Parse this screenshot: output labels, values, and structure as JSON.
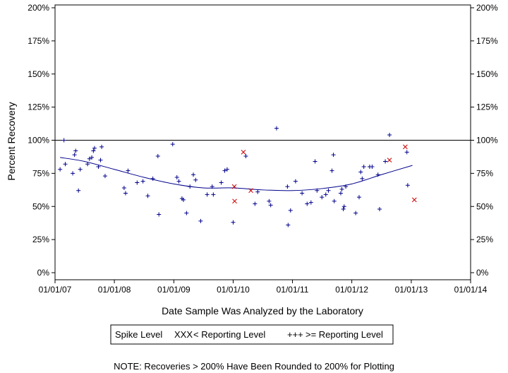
{
  "chart_data": {
    "type": "scatter",
    "xlabel": "Date Sample Was Analyzed by the Laboratory",
    "ylabel": "Percent Recovery",
    "ylim": [
      0,
      200
    ],
    "xlim": [
      "2007-01-01",
      "2014-01-01"
    ],
    "y_ticks": [
      0,
      25,
      50,
      75,
      100,
      125,
      150,
      175,
      200
    ],
    "y_tick_labels": [
      "0%",
      "25%",
      "50%",
      "75%",
      "100%",
      "125%",
      "150%",
      "175%",
      "200%"
    ],
    "x_ticks": [
      "2007-01-01",
      "2008-01-01",
      "2009-01-01",
      "2010-01-01",
      "2011-01-01",
      "2012-01-01",
      "2013-01-01",
      "2014-01-01"
    ],
    "x_tick_labels": [
      "01/01/07",
      "01/01/08",
      "01/01/09",
      "01/01/10",
      "01/01/11",
      "01/01/12",
      "01/01/13",
      "01/01/14"
    ],
    "reference_line": 100,
    "grid": false,
    "legend": {
      "title": "Spike Level",
      "placement": "bottom",
      "entries": [
        {
          "symbol": "XXX",
          "label": "< Reporting Level",
          "color": "#cc0000"
        },
        {
          "symbol": "+++",
          "label": ">= Reporting Level",
          "color": "#00008b"
        }
      ]
    },
    "note": "NOTE: Recoveries > 200% Have Been Rounded to 200% for Plotting",
    "colors": {
      "below": "#cc0000",
      "above": "#00008b",
      "trend": "#00008b"
    },
    "series": [
      {
        "name": "< Reporting Level",
        "marker": "x",
        "points": [
          [
            "2010-01-08",
            65
          ],
          [
            "2010-01-10",
            54
          ],
          [
            "2010-03-05",
            91
          ],
          [
            "2010-04-20",
            62
          ],
          [
            "2012-08-20",
            85
          ],
          [
            "2012-11-25",
            95
          ],
          [
            "2013-01-20",
            55
          ]
        ]
      },
      {
        "name": ">= Reporting Level",
        "marker": "+",
        "points": [
          [
            "2007-02-01",
            78
          ],
          [
            "2007-02-25",
            100
          ],
          [
            "2007-03-05",
            82
          ],
          [
            "2007-04-20",
            75
          ],
          [
            "2007-05-01",
            89
          ],
          [
            "2007-05-08",
            92
          ],
          [
            "2007-05-25",
            62
          ],
          [
            "2007-06-05",
            78
          ],
          [
            "2007-07-20",
            82
          ],
          [
            "2007-08-01",
            86
          ],
          [
            "2007-08-15",
            87
          ],
          [
            "2007-08-25",
            92
          ],
          [
            "2007-09-01",
            94
          ],
          [
            "2007-09-25",
            80
          ],
          [
            "2007-10-08",
            85
          ],
          [
            "2007-10-15",
            95
          ],
          [
            "2007-11-05",
            73
          ],
          [
            "2008-03-01",
            64
          ],
          [
            "2008-03-10",
            60
          ],
          [
            "2008-03-25",
            77
          ],
          [
            "2008-05-20",
            68
          ],
          [
            "2008-06-25",
            69
          ],
          [
            "2008-07-25",
            58
          ],
          [
            "2008-08-25",
            71
          ],
          [
            "2008-09-25",
            88
          ],
          [
            "2008-10-01",
            44
          ],
          [
            "2008-12-25",
            97
          ],
          [
            "2009-01-20",
            72
          ],
          [
            "2009-02-01",
            69
          ],
          [
            "2009-02-20",
            56
          ],
          [
            "2009-03-01",
            55
          ],
          [
            "2009-03-20",
            45
          ],
          [
            "2009-04-10",
            65
          ],
          [
            "2009-05-01",
            74
          ],
          [
            "2009-05-15",
            70
          ],
          [
            "2009-06-15",
            39
          ],
          [
            "2009-07-25",
            59
          ],
          [
            "2009-08-25",
            65
          ],
          [
            "2009-09-01",
            59
          ],
          [
            "2009-10-20",
            68
          ],
          [
            "2009-11-10",
            77
          ],
          [
            "2009-11-25",
            78
          ],
          [
            "2010-01-01",
            38
          ],
          [
            "2010-03-20",
            88
          ],
          [
            "2010-05-15",
            52
          ],
          [
            "2010-06-01",
            61
          ],
          [
            "2010-08-10",
            54
          ],
          [
            "2010-08-20",
            51
          ],
          [
            "2010-09-25",
            109
          ],
          [
            "2010-12-01",
            65
          ],
          [
            "2010-12-05",
            36
          ],
          [
            "2010-12-20",
            47
          ],
          [
            "2011-01-20",
            69
          ],
          [
            "2011-03-01",
            60
          ],
          [
            "2011-04-01",
            52
          ],
          [
            "2011-04-25",
            53
          ],
          [
            "2011-05-20",
            84
          ],
          [
            "2011-06-01",
            62
          ],
          [
            "2011-07-01",
            57
          ],
          [
            "2011-07-25",
            59
          ],
          [
            "2011-08-10",
            62
          ],
          [
            "2011-09-01",
            77
          ],
          [
            "2011-09-10",
            89
          ],
          [
            "2011-09-15",
            54
          ],
          [
            "2011-10-25",
            60
          ],
          [
            "2011-11-01",
            63
          ],
          [
            "2011-11-10",
            48
          ],
          [
            "2011-11-15",
            50
          ],
          [
            "2011-11-25",
            65
          ],
          [
            "2012-01-25",
            45
          ],
          [
            "2012-02-15",
            57
          ],
          [
            "2012-02-25",
            76
          ],
          [
            "2012-03-05",
            71
          ],
          [
            "2012-03-15",
            80
          ],
          [
            "2012-04-20",
            80
          ],
          [
            "2012-05-05",
            80
          ],
          [
            "2012-06-10",
            74
          ],
          [
            "2012-06-20",
            48
          ],
          [
            "2012-07-25",
            84
          ],
          [
            "2012-08-20",
            104
          ],
          [
            "2012-12-05",
            91
          ],
          [
            "2012-12-10",
            66
          ]
        ]
      }
    ],
    "trend_curve": {
      "shape": "smoothed",
      "points": [
        [
          "2007-02-01",
          87
        ],
        [
          "2007-07-01",
          84
        ],
        [
          "2008-01-01",
          78
        ],
        [
          "2008-07-01",
          72
        ],
        [
          "2009-01-01",
          67
        ],
        [
          "2009-07-01",
          64
        ],
        [
          "2010-01-01",
          64
        ],
        [
          "2010-07-01",
          62.5
        ],
        [
          "2011-01-01",
          62
        ],
        [
          "2011-07-01",
          63.5
        ],
        [
          "2012-01-01",
          67
        ],
        [
          "2012-07-01",
          74
        ],
        [
          "2013-01-08",
          81
        ]
      ]
    }
  }
}
